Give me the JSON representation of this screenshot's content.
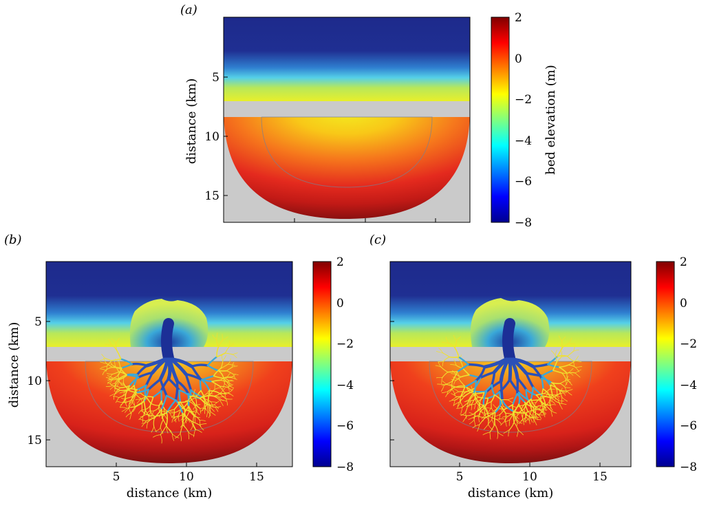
{
  "chart_data": [
    {
      "type": "heatmap",
      "panel_label": "(a)",
      "title": "",
      "xlabel": "",
      "ylabel": "distance (km)",
      "xlim": [
        0,
        17.5
      ],
      "ylim": [
        17.5,
        0
      ],
      "yticks": [
        "5",
        "10",
        "15"
      ],
      "xticks": [],
      "colorbar": {
        "label": "bed elevation (m)",
        "range": [
          -8,
          2
        ],
        "ticks": [
          "2",
          "0",
          "−2",
          "−4",
          "−6",
          "−8"
        ]
      },
      "features": {
        "ocean_elevation_m": -8,
        "barrier_elevation_m": -2,
        "barrier_y_km": 7.8,
        "inlet_center_x_km": 8.5,
        "basin_center_elevation_m": -2,
        "basin_edge_elevation_m": 2,
        "channel_network": false
      }
    },
    {
      "type": "heatmap",
      "panel_label": "(b)",
      "title": "",
      "xlabel": "distance (km)",
      "ylabel": "distance (km)",
      "xlim": [
        0,
        17.5
      ],
      "ylim": [
        17.5,
        0
      ],
      "xticks": [
        "5",
        "10",
        "15"
      ],
      "yticks": [
        "5",
        "10",
        "15"
      ],
      "colorbar": {
        "label": "",
        "range": [
          -8,
          2
        ],
        "ticks": [
          "2",
          "0",
          "−2",
          "−4",
          "−6",
          "−8"
        ]
      },
      "features": {
        "ocean_elevation_m": -8,
        "ebb_delta_elevation_m": -2,
        "inlet_channel_elevation_m": -8,
        "basin_edge_elevation_m": 2,
        "channel_network": true
      }
    },
    {
      "type": "heatmap",
      "panel_label": "(c)",
      "title": "",
      "xlabel": "distance (km)",
      "ylabel": "",
      "xlim": [
        0,
        17.5
      ],
      "ylim": [
        17.5,
        0
      ],
      "xticks": [
        "5",
        "10",
        "15"
      ],
      "yticks": [],
      "colorbar": {
        "label": "",
        "range": [
          -8,
          2
        ],
        "ticks": [
          "2",
          "0",
          "−2",
          "−4",
          "−6",
          "−8"
        ]
      },
      "features": {
        "ocean_elevation_m": -8,
        "ebb_delta_elevation_m": -2,
        "inlet_channel_elevation_m": -8,
        "basin_edge_elevation_m": 2,
        "channel_network": true
      }
    }
  ]
}
